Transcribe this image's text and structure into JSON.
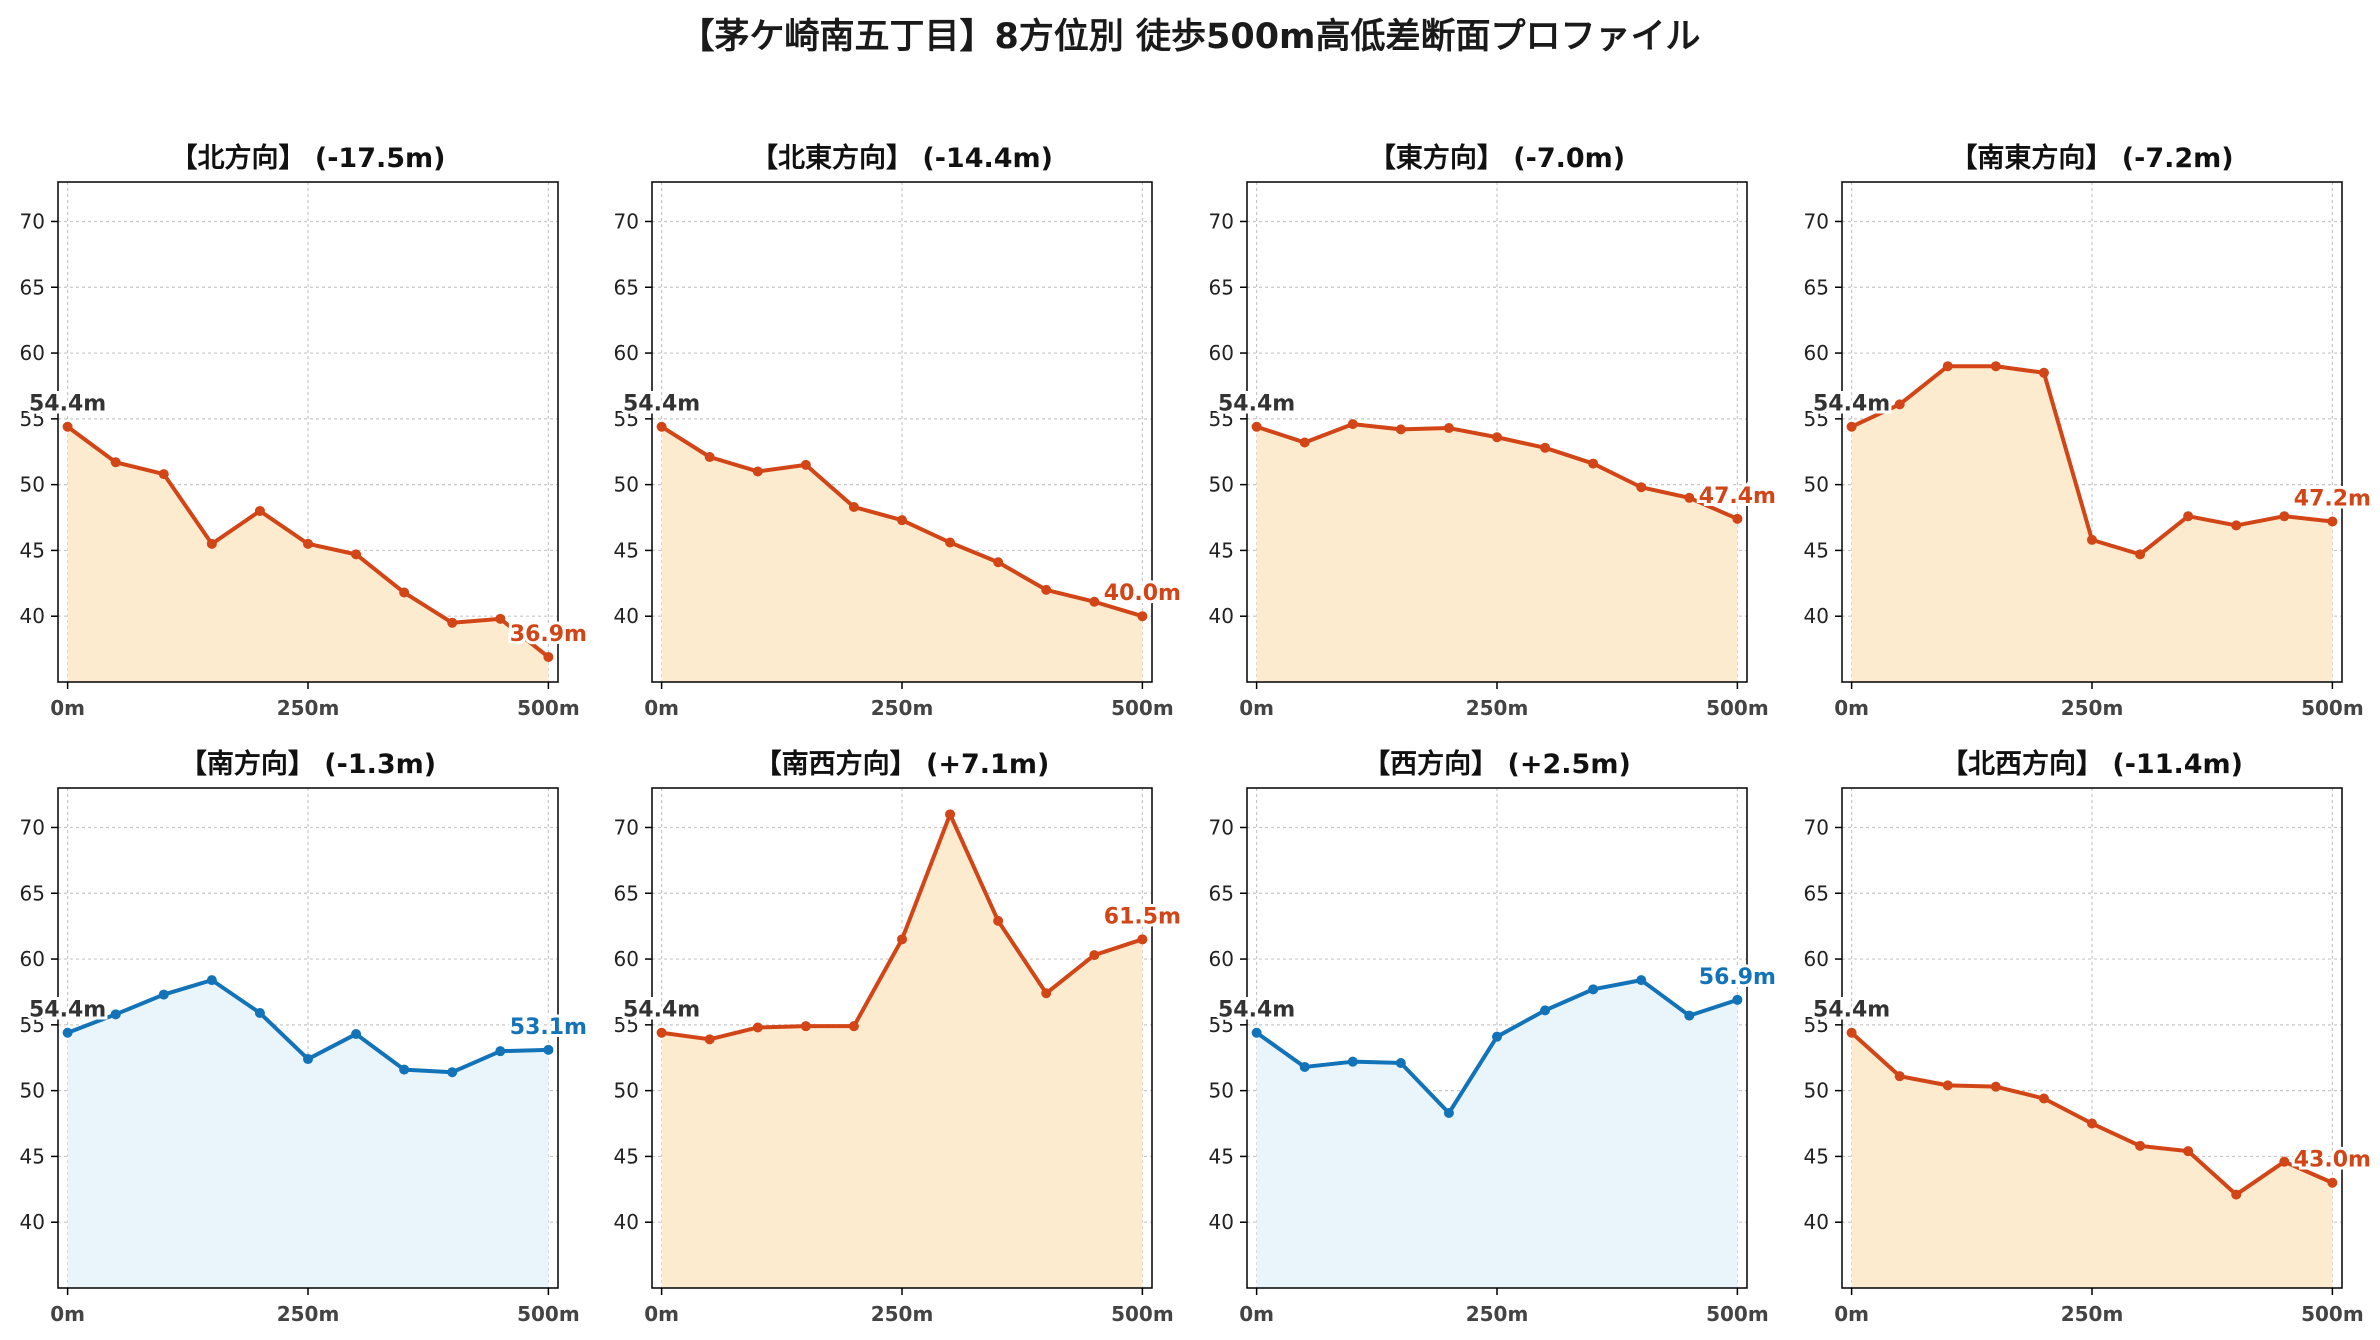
{
  "title": "【茅ケ崎南五丁目】8方位別 徒歩500m高低差断面プロファイル",
  "colors": {
    "descend_line": "#d24517",
    "descend_fill": "#fdebcf",
    "ascend_line": "#1273b8",
    "ascend_fill": "#e9f5fb",
    "start_label": "#333333",
    "grid": "#c8c8c8",
    "axis": "#000000"
  },
  "chart_data": [
    {
      "type": "area",
      "title": "【北方向】 (-17.5m)",
      "trend": "down",
      "x": [
        0,
        50,
        100,
        150,
        200,
        250,
        300,
        350,
        400,
        450,
        500
      ],
      "y": [
        54.4,
        51.7,
        50.8,
        45.5,
        48.0,
        45.5,
        44.7,
        41.8,
        39.5,
        39.8,
        36.9
      ],
      "xticks": [
        0,
        250,
        500
      ],
      "xtick_labels": [
        "0m",
        "250m",
        "500m"
      ],
      "yticks": [
        40,
        45,
        50,
        55,
        60,
        65,
        70
      ],
      "ylim": [
        35,
        73
      ],
      "xlim": [
        -10,
        510
      ],
      "start_label": "54.4m",
      "end_label": "36.9m",
      "grid": true
    },
    {
      "type": "area",
      "title": "【北東方向】 (-14.4m)",
      "trend": "down",
      "x": [
        0,
        50,
        100,
        150,
        200,
        250,
        300,
        350,
        400,
        450,
        500
      ],
      "y": [
        54.4,
        52.1,
        51.0,
        51.5,
        48.3,
        47.3,
        45.6,
        44.1,
        42.0,
        41.1,
        40.0
      ],
      "xticks": [
        0,
        250,
        500
      ],
      "xtick_labels": [
        "0m",
        "250m",
        "500m"
      ],
      "yticks": [
        40,
        45,
        50,
        55,
        60,
        65,
        70
      ],
      "ylim": [
        35,
        73
      ],
      "xlim": [
        -10,
        510
      ],
      "start_label": "54.4m",
      "end_label": "40.0m",
      "grid": true
    },
    {
      "type": "area",
      "title": "【東方向】 (-7.0m)",
      "trend": "down",
      "x": [
        0,
        50,
        100,
        150,
        200,
        250,
        300,
        350,
        400,
        450,
        500
      ],
      "y": [
        54.4,
        53.2,
        54.6,
        54.2,
        54.3,
        53.6,
        52.8,
        51.6,
        49.8,
        49.0,
        47.4
      ],
      "xticks": [
        0,
        250,
        500
      ],
      "xtick_labels": [
        "0m",
        "250m",
        "500m"
      ],
      "yticks": [
        40,
        45,
        50,
        55,
        60,
        65,
        70
      ],
      "ylim": [
        35,
        73
      ],
      "xlim": [
        -10,
        510
      ],
      "start_label": "54.4m",
      "end_label": "47.4m",
      "grid": true
    },
    {
      "type": "area",
      "title": "【南東方向】 (-7.2m)",
      "trend": "down",
      "x": [
        0,
        50,
        100,
        150,
        200,
        250,
        300,
        350,
        400,
        450,
        500
      ],
      "y": [
        54.4,
        56.1,
        59.0,
        59.0,
        58.5,
        45.8,
        44.7,
        47.6,
        46.9,
        47.6,
        47.2
      ],
      "xticks": [
        0,
        250,
        500
      ],
      "xtick_labels": [
        "0m",
        "250m",
        "500m"
      ],
      "yticks": [
        40,
        45,
        50,
        55,
        60,
        65,
        70
      ],
      "ylim": [
        35,
        73
      ],
      "xlim": [
        -10,
        510
      ],
      "start_label": "54.4m",
      "end_label": "47.2m",
      "grid": true
    },
    {
      "type": "area",
      "title": "【南方向】 (-1.3m)",
      "trend": "up",
      "x": [
        0,
        50,
        100,
        150,
        200,
        250,
        300,
        350,
        400,
        450,
        500
      ],
      "y": [
        54.4,
        55.8,
        57.3,
        58.4,
        55.9,
        52.4,
        54.3,
        51.6,
        51.4,
        53.0,
        53.1
      ],
      "xticks": [
        0,
        250,
        500
      ],
      "xtick_labels": [
        "0m",
        "250m",
        "500m"
      ],
      "yticks": [
        40,
        45,
        50,
        55,
        60,
        65,
        70
      ],
      "ylim": [
        35,
        73
      ],
      "xlim": [
        -10,
        510
      ],
      "start_label": "54.4m",
      "end_label": "53.1m",
      "grid": true
    },
    {
      "type": "area",
      "title": "【南西方向】 (+7.1m)",
      "trend": "down",
      "x": [
        0,
        50,
        100,
        150,
        200,
        250,
        300,
        350,
        400,
        450,
        500
      ],
      "y": [
        54.4,
        53.9,
        54.8,
        54.9,
        54.9,
        61.5,
        71.0,
        62.9,
        57.4,
        60.3,
        61.5
      ],
      "xticks": [
        0,
        250,
        500
      ],
      "xtick_labels": [
        "0m",
        "250m",
        "500m"
      ],
      "yticks": [
        40,
        45,
        50,
        55,
        60,
        65,
        70
      ],
      "ylim": [
        35,
        73
      ],
      "xlim": [
        -10,
        510
      ],
      "start_label": "54.4m",
      "end_label": "61.5m",
      "grid": true
    },
    {
      "type": "area",
      "title": "【西方向】 (+2.5m)",
      "trend": "up",
      "x": [
        0,
        50,
        100,
        150,
        200,
        250,
        300,
        350,
        400,
        450,
        500
      ],
      "y": [
        54.4,
        51.8,
        52.2,
        52.1,
        48.3,
        54.1,
        56.1,
        57.7,
        58.4,
        55.7,
        56.9
      ],
      "xticks": [
        0,
        250,
        500
      ],
      "xtick_labels": [
        "0m",
        "250m",
        "500m"
      ],
      "yticks": [
        40,
        45,
        50,
        55,
        60,
        65,
        70
      ],
      "ylim": [
        35,
        73
      ],
      "xlim": [
        -10,
        510
      ],
      "start_label": "54.4m",
      "end_label": "56.9m",
      "grid": true
    },
    {
      "type": "area",
      "title": "【北西方向】 (-11.4m)",
      "trend": "down",
      "x": [
        0,
        50,
        100,
        150,
        200,
        250,
        300,
        350,
        400,
        450,
        500
      ],
      "y": [
        54.4,
        51.1,
        50.4,
        50.3,
        49.4,
        47.5,
        45.8,
        45.4,
        42.1,
        44.6,
        43.0
      ],
      "xticks": [
        0,
        250,
        500
      ],
      "xtick_labels": [
        "0m",
        "250m",
        "500m"
      ],
      "yticks": [
        40,
        45,
        50,
        55,
        60,
        65,
        70
      ],
      "ylim": [
        35,
        73
      ],
      "xlim": [
        -10,
        510
      ],
      "start_label": "54.4m",
      "end_label": "43.0m",
      "grid": true
    }
  ]
}
